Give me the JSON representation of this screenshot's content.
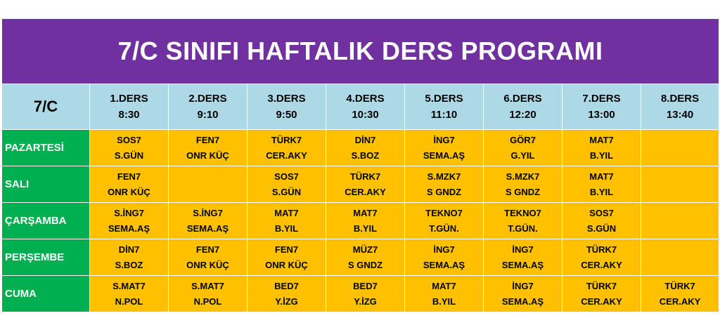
{
  "title": "7/C SINIFI HAFTALIK DERS PROGRAMI",
  "corner_label": "7/C",
  "periods": [
    {
      "name": "1.DERS",
      "time": "8:30"
    },
    {
      "name": "2.DERS",
      "time": "9:10"
    },
    {
      "name": "3.DERS",
      "time": "9:50"
    },
    {
      "name": "4.DERS",
      "time": "10:30"
    },
    {
      "name": "5.DERS",
      "time": "11:10"
    },
    {
      "name": "6.DERS",
      "time": "12:20"
    },
    {
      "name": "7.DERS",
      "time": "13:00"
    },
    {
      "name": "8.DERS",
      "time": "13:40"
    }
  ],
  "days": [
    {
      "day": "PAZARTESİ",
      "lessons": [
        {
          "course": "SOS7",
          "teacher": "S.GÜN"
        },
        {
          "course": "FEN7",
          "teacher": "ONR KÜÇ"
        },
        {
          "course": "TÜRK7",
          "teacher": "CER.AKY"
        },
        {
          "course": "DİN7",
          "teacher": "S.BOZ"
        },
        {
          "course": "İNG7",
          "teacher": "SEMA.AŞ"
        },
        {
          "course": "GÖR7",
          "teacher": "G.YIL"
        },
        {
          "course": "MAT7",
          "teacher": "B.YIL"
        },
        {
          "course": "",
          "teacher": ""
        }
      ]
    },
    {
      "day": "SALI",
      "lessons": [
        {
          "course": "FEN7",
          "teacher": "ONR KÜÇ"
        },
        {
          "course": "",
          "teacher": ""
        },
        {
          "course": "SOS7",
          "teacher": "S.GÜN"
        },
        {
          "course": "TÜRK7",
          "teacher": "CER.AKY"
        },
        {
          "course": "S.MZK7",
          "teacher": "S GNDZ"
        },
        {
          "course": "S.MZK7",
          "teacher": "S GNDZ"
        },
        {
          "course": "MAT7",
          "teacher": "B.YIL"
        },
        {
          "course": "",
          "teacher": ""
        }
      ]
    },
    {
      "day": "ÇARŞAMBA",
      "lessons": [
        {
          "course": "S.İNG7",
          "teacher": "SEMA.AŞ"
        },
        {
          "course": "S.İNG7",
          "teacher": "SEMA.AŞ"
        },
        {
          "course": "MAT7",
          "teacher": "B.YIL"
        },
        {
          "course": "MAT7",
          "teacher": "B.YIL"
        },
        {
          "course": "TEKNO7",
          "teacher": "T.GÜN."
        },
        {
          "course": "TEKNO7",
          "teacher": "T.GÜN."
        },
        {
          "course": "SOS7",
          "teacher": "S.GÜN"
        },
        {
          "course": "",
          "teacher": ""
        }
      ]
    },
    {
      "day": "PERŞEMBE",
      "lessons": [
        {
          "course": "DİN7",
          "teacher": "S.BOZ"
        },
        {
          "course": "FEN7",
          "teacher": "ONR KÜÇ"
        },
        {
          "course": "FEN7",
          "teacher": "ONR KÜÇ"
        },
        {
          "course": "MÜZ7",
          "teacher": "S GNDZ"
        },
        {
          "course": "İNG7",
          "teacher": "SEMA.AŞ"
        },
        {
          "course": "İNG7",
          "teacher": "SEMA.AŞ"
        },
        {
          "course": "TÜRK7",
          "teacher": "CER.AKY"
        },
        {
          "course": "",
          "teacher": ""
        }
      ]
    },
    {
      "day": "CUMA",
      "lessons": [
        {
          "course": "S.MAT7",
          "teacher": "N.POL"
        },
        {
          "course": "S.MAT7",
          "teacher": "N.POL"
        },
        {
          "course": "BED7",
          "teacher": "Y.İZG"
        },
        {
          "course": "BED7",
          "teacher": "Y.İZG"
        },
        {
          "course": "MAT7",
          "teacher": "B.YIL"
        },
        {
          "course": "İNG7",
          "teacher": "SEMA.AŞ"
        },
        {
          "course": "TÜRK7",
          "teacher": "CER.AKY"
        },
        {
          "course": "TÜRK7",
          "teacher": "CER.AKY"
        }
      ]
    }
  ],
  "colors": {
    "title_bg": "#7030a0",
    "header_bg": "#add8e6",
    "day_bg": "#00b050",
    "lesson_bg": "#ffc000"
  }
}
